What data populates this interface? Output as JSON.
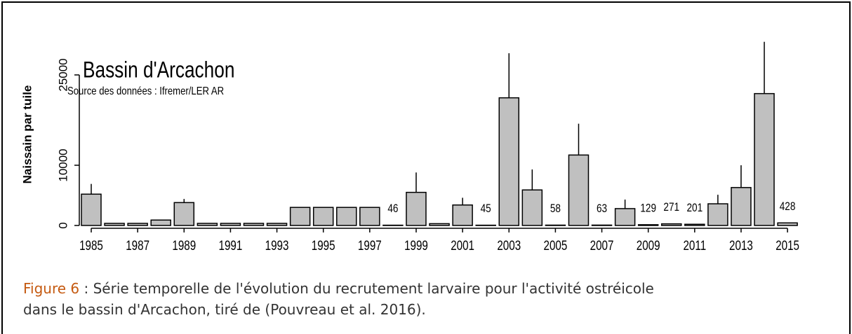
{
  "chart_data": {
    "type": "bar",
    "title": "Bassin d'Arcachon",
    "subtitle": "Source des données : Ifremer/LER AR",
    "y_label": "Naissain par tuile",
    "categories": [
      "1985",
      null,
      "1987",
      null,
      "1989",
      null,
      "1991",
      null,
      "1993",
      null,
      "1995",
      null,
      "1997",
      null,
      "1999",
      null,
      "2001",
      null,
      "2003",
      null,
      "2005",
      null,
      "2007",
      null,
      "2009",
      null,
      "2011",
      null,
      "2013",
      null,
      "2015"
    ],
    "values": [
      5200,
      350,
      350,
      900,
      3800,
      350,
      350,
      350,
      350,
      3000,
      3000,
      3000,
      3000,
      46,
      5500,
      300,
      3400,
      45,
      21200,
      5900,
      58,
      11700,
      63,
      2800,
      129,
      271,
      201,
      3600,
      6300,
      21900,
      428
    ],
    "errors": [
      1700,
      null,
      null,
      null,
      600,
      null,
      null,
      null,
      null,
      null,
      null,
      null,
      null,
      null,
      3300,
      null,
      1200,
      null,
      7400,
      3400,
      null,
      5200,
      null,
      1500,
      null,
      null,
      null,
      1500,
      3700,
      8600,
      null
    ],
    "value_labels": [
      null,
      null,
      null,
      null,
      null,
      null,
      null,
      null,
      null,
      null,
      null,
      null,
      null,
      "46",
      null,
      null,
      null,
      "45",
      null,
      null,
      "58",
      null,
      "63",
      null,
      "129",
      "271",
      "201",
      null,
      null,
      null,
      "428"
    ],
    "color": "#c0c0c0",
    "ylim": [
      0,
      31000
    ],
    "yticks": [
      0,
      10000,
      25000
    ]
  },
  "caption": {
    "label": "Figure 6",
    "lines": [
      " : Série temporelle de l'évolution du recrutement larvaire pour l'activité ostréicole",
      "dans le bassin d'Arcachon, tiré de (Pouvreau et al. 2016)."
    ]
  }
}
